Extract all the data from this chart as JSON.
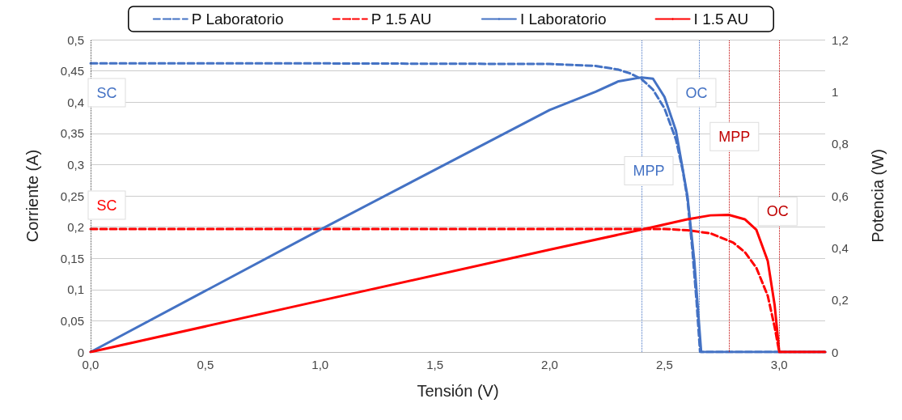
{
  "chart_data": {
    "type": "line",
    "xlabel": "Tensión (V)",
    "ylabel": "Corriente (A)",
    "y2label": "Potencia (W)",
    "xlim": [
      0,
      3.2
    ],
    "xticks": [
      {
        "value": 0,
        "label": "0,0"
      },
      {
        "value": 0.5,
        "label": "0,5"
      },
      {
        "value": 1,
        "label": "1,0"
      },
      {
        "value": 1.5,
        "label": "1,5"
      },
      {
        "value": 2,
        "label": "2,0"
      },
      {
        "value": 2.5,
        "label": "2,5"
      },
      {
        "value": 3,
        "label": "3,0"
      }
    ],
    "ylim": [
      0,
      0.5
    ],
    "yticks": [
      0,
      {
        "value": 0.05,
        "label": "0,05"
      },
      {
        "value": 0.1,
        "label": "0,1"
      },
      {
        "value": 0.15,
        "label": "0,15"
      },
      {
        "value": 0.2,
        "label": "0,2"
      },
      {
        "value": 0.25,
        "label": "0,25"
      },
      {
        "value": 0.3,
        "label": "0,3"
      },
      {
        "value": 0.35,
        "label": "0,35"
      },
      {
        "value": 0.4,
        "label": "0,4"
      },
      {
        "value": 0.45,
        "label": "0,45"
      },
      {
        "value": 0.5,
        "label": "0,5"
      }
    ],
    "y2lim": [
      0,
      1.2
    ],
    "y2ticks": [
      0,
      {
        "value": 0.2,
        "label": "0,2"
      },
      {
        "value": 0.4,
        "label": "0,4"
      },
      {
        "value": 0.6,
        "label": "0,6"
      },
      {
        "value": 0.8,
        "label": "0,8"
      },
      {
        "value": 1,
        "label": "1"
      },
      {
        "value": 1.2,
        "label": "1,2"
      }
    ],
    "grid": "y",
    "legend": "top",
    "series": [
      {
        "name": "P Laboratorio",
        "color": "#4472c4",
        "line_style": "dashed",
        "axis": "y",
        "x": [
          0,
          1,
          2,
          2.2,
          2.3,
          2.35,
          2.4,
          2.45,
          2.5,
          2.55,
          2.58,
          2.6,
          2.62,
          2.64,
          2.655,
          3.2
        ],
        "values": [
          0.462,
          0.462,
          0.461,
          0.458,
          0.452,
          0.446,
          0.437,
          0.42,
          0.39,
          0.34,
          0.29,
          0.245,
          0.17,
          0.08,
          0,
          0
        ]
      },
      {
        "name": "P 1.5 AU",
        "color": "#ff0000",
        "line_style": "dashed",
        "axis": "y",
        "x": [
          0,
          1,
          2,
          2.5,
          2.6,
          2.7,
          2.8,
          2.85,
          2.9,
          2.95,
          2.98,
          3,
          3.2
        ],
        "values": [
          0.197,
          0.197,
          0.197,
          0.197,
          0.195,
          0.19,
          0.175,
          0.16,
          0.135,
          0.09,
          0.04,
          0,
          0
        ]
      },
      {
        "name": "I Laboratorio",
        "color": "#4472c4",
        "line_style": "solid",
        "axis": "y2",
        "x": [
          0,
          1,
          2,
          2.2,
          2.3,
          2.4,
          2.45,
          2.5,
          2.55,
          2.6,
          2.63,
          2.66,
          3.2
        ],
        "values": [
          0,
          0.47,
          0.93,
          1,
          1.04,
          1.055,
          1.05,
          0.98,
          0.85,
          0.6,
          0.35,
          0,
          0
        ]
      },
      {
        "name": "I 1.5 AU",
        "color": "#ff0000",
        "line_style": "solid",
        "axis": "y2",
        "x": [
          0,
          1,
          2,
          2.4,
          2.6,
          2.7,
          2.78,
          2.85,
          2.9,
          2.95,
          2.98,
          3,
          3.2
        ],
        "values": [
          0,
          0.197,
          0.393,
          0.47,
          0.51,
          0.525,
          0.527,
          0.51,
          0.47,
          0.35,
          0.18,
          0,
          0
        ]
      }
    ],
    "ref_lines": [
      {
        "axis": "x",
        "value": 0,
        "color": "#404040",
        "line_style": "dotted"
      },
      {
        "axis": "x",
        "value": 2.4,
        "label": "MPP",
        "color": "#4472c4",
        "line_style": "dotted"
      },
      {
        "axis": "x",
        "value": 2.65,
        "label": "OC",
        "color": "#4472c4",
        "line_style": "dotted"
      },
      {
        "axis": "x",
        "value": 2.78,
        "label": "MPP",
        "color": "#c00000",
        "line_style": "dotted"
      },
      {
        "axis": "x",
        "value": 3,
        "label": "OC",
        "color": "#c00000",
        "line_style": "dotted"
      }
    ],
    "annotations": [
      "SC",
      "SC"
    ]
  }
}
